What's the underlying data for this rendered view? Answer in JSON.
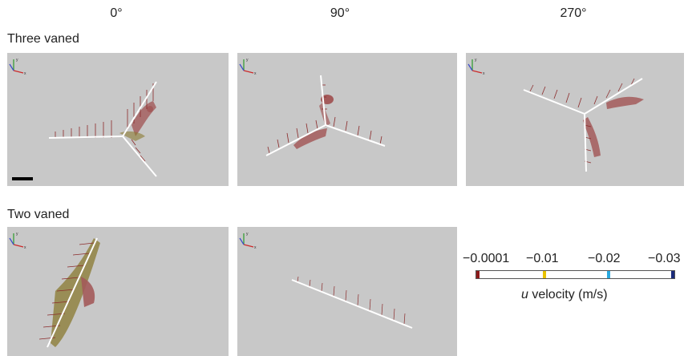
{
  "columns": [
    "0°",
    "90°",
    "270°"
  ],
  "rows": [
    "Three vaned",
    "Two vaned"
  ],
  "axes_triad": {
    "x": "x",
    "y": "y",
    "z": "z"
  },
  "colorbar": {
    "ticks": [
      "−0.0001",
      "−0.01",
      "−0.02",
      "−0.03"
    ],
    "label_var": "u",
    "label_rest": " velocity (m/s)",
    "colors": {
      "start": "#8b1a1a",
      "mark1": "#e8c200",
      "mark2": "#29a9e0",
      "end": "#1a2a7a"
    }
  },
  "colors": {
    "panel_bg": "#c8c8c8",
    "vane": "#ffffff",
    "vector": "#8b2a2a",
    "isosurface": "#a35a5a",
    "isosurface_olive": "#8a7a30",
    "scale_bar": "#000000"
  }
}
